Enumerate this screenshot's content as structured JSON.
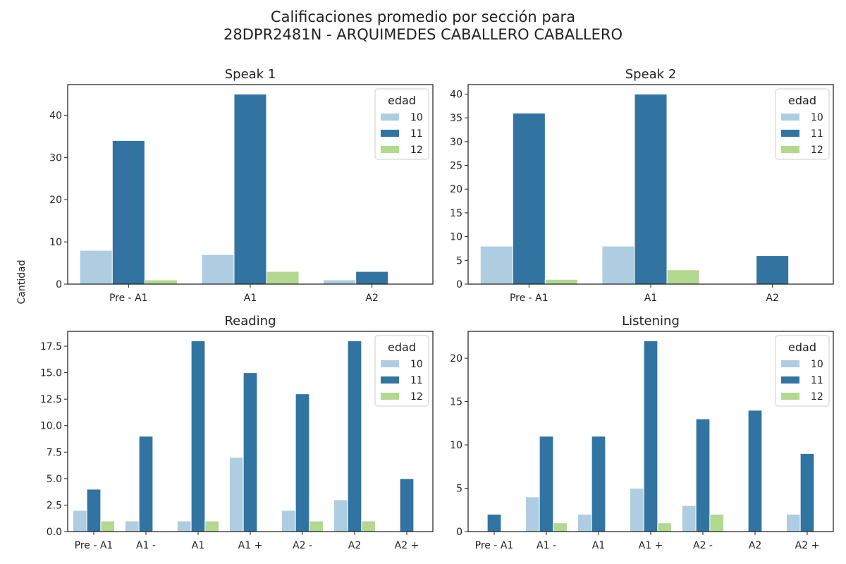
{
  "title_line1": "Calificaciones promedio por sección para",
  "title_line2": "28DPR2481N - ARQUIMEDES CABALLERO CABALLERO",
  "ylabel": "Cantidad",
  "legend_title": "edad",
  "colors": {
    "10": "#aecde1",
    "11": "#3274a1",
    "12": "#b3d88f"
  },
  "chart_data": [
    {
      "type": "bar",
      "title": "Speak 1",
      "categories": [
        "Pre - A1",
        "A1",
        "A2"
      ],
      "series": [
        {
          "name": "10",
          "values": [
            8,
            7,
            1
          ]
        },
        {
          "name": "11",
          "values": [
            34,
            45,
            3
          ]
        },
        {
          "name": "12",
          "values": [
            1,
            3,
            0
          ]
        }
      ],
      "ylim": [
        0,
        47.25
      ],
      "yticks": [
        0,
        10,
        20,
        30,
        40
      ],
      "ytick_labels": [
        "0",
        "10",
        "20",
        "30",
        "40"
      ],
      "legend": "top-right"
    },
    {
      "type": "bar",
      "title": "Speak 2",
      "categories": [
        "Pre - A1",
        "A1",
        "A2"
      ],
      "series": [
        {
          "name": "10",
          "values": [
            8,
            8,
            0
          ]
        },
        {
          "name": "11",
          "values": [
            36,
            40,
            6
          ]
        },
        {
          "name": "12",
          "values": [
            1,
            3,
            0
          ]
        }
      ],
      "ylim": [
        0,
        42
      ],
      "yticks": [
        0,
        5,
        10,
        15,
        20,
        25,
        30,
        35,
        40
      ],
      "ytick_labels": [
        "0",
        "5",
        "10",
        "15",
        "20",
        "25",
        "30",
        "35",
        "40"
      ],
      "legend": "top-right"
    },
    {
      "type": "bar",
      "title": "Reading",
      "categories": [
        "Pre - A1",
        "A1 -",
        "A1",
        "A1 +",
        "A2 -",
        "A2",
        "A2 +"
      ],
      "series": [
        {
          "name": "10",
          "values": [
            2,
            1,
            1,
            7,
            2,
            3,
            0
          ]
        },
        {
          "name": "11",
          "values": [
            4,
            9,
            18,
            15,
            13,
            18,
            5
          ]
        },
        {
          "name": "12",
          "values": [
            1,
            0,
            1,
            0,
            1,
            1,
            0
          ]
        }
      ],
      "ylim": [
        0,
        18.9
      ],
      "yticks": [
        0,
        2.5,
        5,
        7.5,
        10,
        12.5,
        15,
        17.5
      ],
      "ytick_labels": [
        "0.0",
        "2.5",
        "5.0",
        "7.5",
        "10.0",
        "12.5",
        "15.0",
        "17.5"
      ],
      "legend": "top-right"
    },
    {
      "type": "bar",
      "title": "Listening",
      "categories": [
        "Pre - A1",
        "A1 -",
        "A1",
        "A1 +",
        "A2 -",
        "A2",
        "A2 +"
      ],
      "series": [
        {
          "name": "10",
          "values": [
            0,
            4,
            2,
            5,
            3,
            0,
            2
          ]
        },
        {
          "name": "11",
          "values": [
            2,
            11,
            11,
            22,
            13,
            14,
            9
          ]
        },
        {
          "name": "12",
          "values": [
            0,
            1,
            0,
            1,
            2,
            0,
            0
          ]
        }
      ],
      "ylim": [
        0,
        23.1
      ],
      "yticks": [
        0,
        5,
        10,
        15,
        20
      ],
      "ytick_labels": [
        "0",
        "5",
        "10",
        "15",
        "20"
      ],
      "legend": "top-right"
    }
  ]
}
